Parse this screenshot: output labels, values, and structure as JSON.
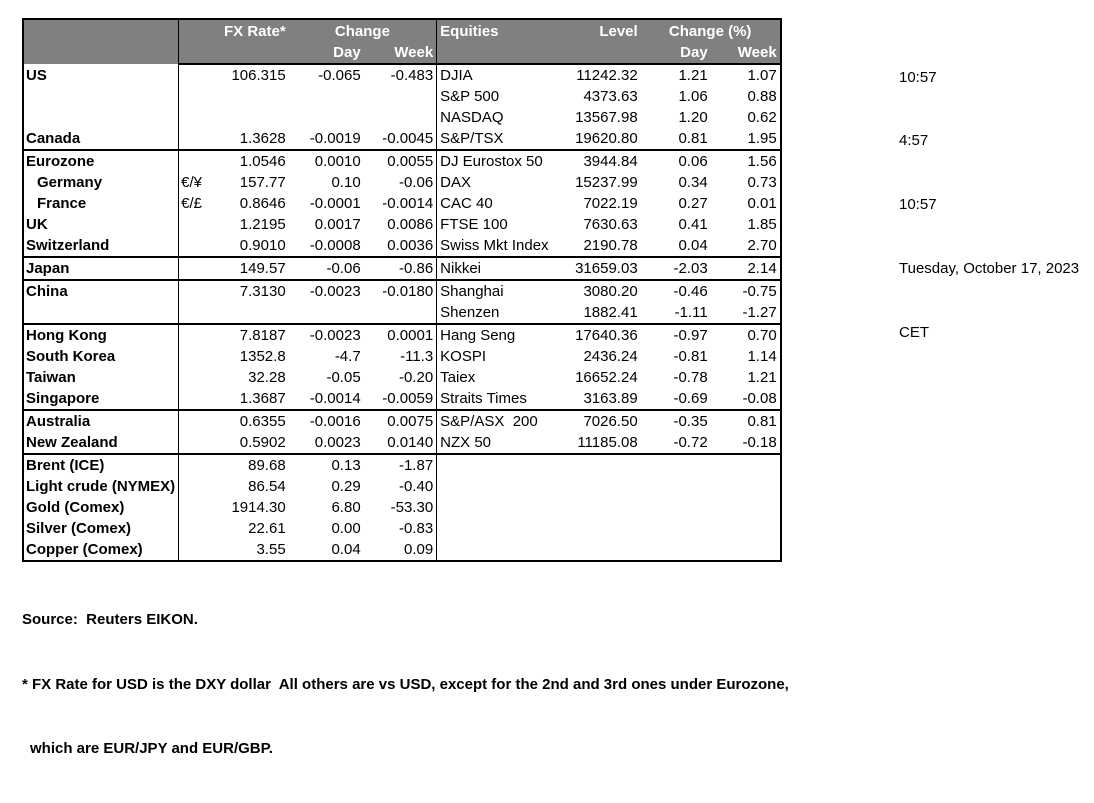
{
  "table": {
    "header": {
      "fx_rate": "FX Rate*",
      "change": "Change",
      "day": "Day",
      "week": "Week",
      "equities": "Equities",
      "level": "Level",
      "change_pct": "Change (%)"
    },
    "rows": [
      {
        "label": "US",
        "pair": "",
        "rate": "106.315",
        "day": "-0.065",
        "week": "-0.483",
        "eq": "DJIA",
        "level": "11242.32",
        "eqd": "1.21",
        "eqw": "1.07",
        "sep": false,
        "ind": false
      },
      {
        "label": "",
        "pair": "",
        "rate": "",
        "day": "",
        "week": "",
        "eq": "S&P 500",
        "level": "4373.63",
        "eqd": "1.06",
        "eqw": "0.88",
        "sep": false,
        "ind": false
      },
      {
        "label": "",
        "pair": "",
        "rate": "",
        "day": "",
        "week": "",
        "eq": "NASDAQ",
        "level": "13567.98",
        "eqd": "1.20",
        "eqw": "0.62",
        "sep": false,
        "ind": false
      },
      {
        "label": "Canada",
        "pair": "",
        "rate": "1.3628",
        "day": "-0.0019",
        "week": "-0.0045",
        "eq": "S&P/TSX",
        "level": "19620.80",
        "eqd": "0.81",
        "eqw": "1.95",
        "sep": false,
        "ind": false
      },
      {
        "label": "Eurozone",
        "pair": "",
        "rate": "1.0546",
        "day": "0.0010",
        "week": "0.0055",
        "eq": "DJ Eurostox 50",
        "level": "3944.84",
        "eqd": "0.06",
        "eqw": "1.56",
        "sep": true,
        "ind": false
      },
      {
        "label": "Germany",
        "pair": "€/¥",
        "rate": "157.77",
        "day": "0.10",
        "week": "-0.06",
        "eq": "DAX",
        "level": "15237.99",
        "eqd": "0.34",
        "eqw": "0.73",
        "sep": false,
        "ind": true
      },
      {
        "label": "France",
        "pair": "€/£",
        "rate": "0.8646",
        "day": "-0.0001",
        "week": "-0.0014",
        "eq": "CAC 40",
        "level": "7022.19",
        "eqd": "0.27",
        "eqw": "0.01",
        "sep": false,
        "ind": true
      },
      {
        "label": "UK",
        "pair": "",
        "rate": "1.2195",
        "day": "0.0017",
        "week": "0.0086",
        "eq": "FTSE 100",
        "level": "7630.63",
        "eqd": "0.41",
        "eqw": "1.85",
        "sep": false,
        "ind": false
      },
      {
        "label": "Switzerland",
        "pair": "",
        "rate": "0.9010",
        "day": "-0.0008",
        "week": "0.0036",
        "eq": "Swiss Mkt Index",
        "level": "2190.78",
        "eqd": "0.04",
        "eqw": "2.70",
        "sep": false,
        "ind": false
      },
      {
        "label": "Japan",
        "pair": "",
        "rate": "149.57",
        "day": "-0.06",
        "week": "-0.86",
        "eq": "Nikkei",
        "level": "31659.03",
        "eqd": "-2.03",
        "eqw": "2.14",
        "sep": true,
        "ind": false
      },
      {
        "label": "China",
        "pair": "",
        "rate": "7.3130",
        "day": "-0.0023",
        "week": "-0.0180",
        "eq": "Shanghai",
        "level": "3080.20",
        "eqd": "-0.46",
        "eqw": "-0.75",
        "sep": true,
        "ind": false
      },
      {
        "label": "",
        "pair": "",
        "rate": "",
        "day": "",
        "week": "",
        "eq": "Shenzen",
        "level": "1882.41",
        "eqd": "-1.11",
        "eqw": "-1.27",
        "sep": false,
        "ind": false
      },
      {
        "label": "Hong Kong",
        "pair": "",
        "rate": "7.8187",
        "day": "-0.0023",
        "week": "0.0001",
        "eq": "Hang Seng",
        "level": "17640.36",
        "eqd": "-0.97",
        "eqw": "0.70",
        "sep": true,
        "ind": false
      },
      {
        "label": "South Korea",
        "pair": "",
        "rate": "1352.8",
        "day": "-4.7",
        "week": "-11.3",
        "eq": "KOSPI",
        "level": "2436.24",
        "eqd": "-0.81",
        "eqw": "1.14",
        "sep": false,
        "ind": false
      },
      {
        "label": "Taiwan",
        "pair": "",
        "rate": "32.28",
        "day": "-0.05",
        "week": "-0.20",
        "eq": "Taiex",
        "level": "16652.24",
        "eqd": "-0.78",
        "eqw": "1.21",
        "sep": false,
        "ind": false
      },
      {
        "label": "Singapore",
        "pair": "",
        "rate": "1.3687",
        "day": "-0.0014",
        "week": "-0.0059",
        "eq": "Straits Times",
        "level": "3163.89",
        "eqd": "-0.69",
        "eqw": "-0.08",
        "sep": false,
        "ind": false
      },
      {
        "label": "Australia",
        "pair": "",
        "rate": "0.6355",
        "day": "-0.0016",
        "week": "0.0075",
        "eq": "S&P/ASX  200",
        "level": "7026.50",
        "eqd": "-0.35",
        "eqw": "0.81",
        "sep": true,
        "ind": false
      },
      {
        "label": "New Zealand",
        "pair": "",
        "rate": "0.5902",
        "day": "0.0023",
        "week": "0.0140",
        "eq": "NZX 50",
        "level": "11185.08",
        "eqd": "-0.72",
        "eqw": "-0.18",
        "sep": false,
        "ind": false
      },
      {
        "label": "Brent (ICE)",
        "pair": "",
        "rate": "89.68",
        "day": "0.13",
        "week": "-1.87",
        "eq": "",
        "level": "",
        "eqd": "",
        "eqw": "",
        "sep": true,
        "ind": false
      },
      {
        "label": "Light crude (NYMEX)",
        "pair": "",
        "rate": "86.54",
        "day": "0.29",
        "week": "-0.40",
        "eq": "",
        "level": "",
        "eqd": "",
        "eqw": "",
        "sep": false,
        "ind": false
      },
      {
        "label": "Gold (Comex)",
        "pair": "",
        "rate": "1914.30",
        "day": "6.80",
        "week": "-53.30",
        "eq": "",
        "level": "",
        "eqd": "",
        "eqw": "",
        "sep": false,
        "ind": false
      },
      {
        "label": "Silver (Comex)",
        "pair": "",
        "rate": "22.61",
        "day": "0.00",
        "week": "-0.83",
        "eq": "",
        "level": "",
        "eqd": "",
        "eqw": "",
        "sep": false,
        "ind": false
      },
      {
        "label": "Copper (Comex)",
        "pair": "",
        "rate": "3.55",
        "day": "0.04",
        "week": "0.09",
        "eq": "",
        "level": "",
        "eqd": "",
        "eqw": "",
        "sep": false,
        "ind": false
      }
    ]
  },
  "times": {
    "time1": "10:57",
    "time2": "4:57",
    "time3": "10:57",
    "date": "Tuesday, October 17, 2023",
    "timezone": "CET"
  },
  "footer": {
    "source": "Source:  Reuters EIKON.",
    "note1": "* FX Rate for USD is the DXY dollar  All others are vs USD, except for the 2nd and 3rd ones under Eurozone,",
    "note2": "which are EUR/JPY and EUR/GBP."
  },
  "colors": {
    "header_bg": "#808080",
    "header_text": "#ffffff",
    "border": "#000000"
  }
}
